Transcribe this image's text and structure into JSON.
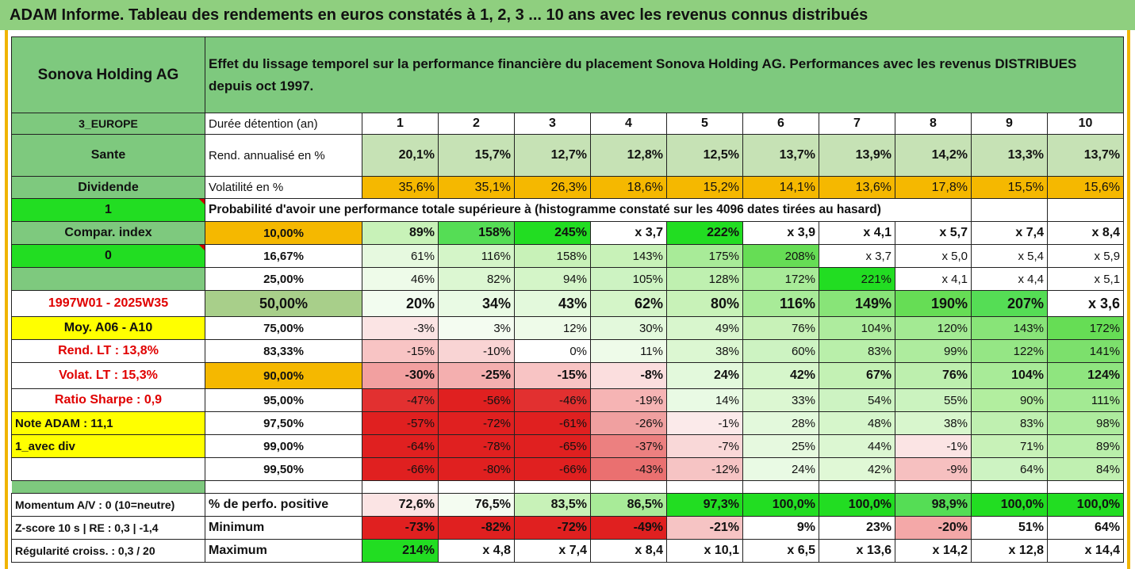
{
  "title": "ADAM Informe. Tableau des rendements en euros constatés à 1, 2, 3 ... 10 ans avec les revenus connus distribués",
  "company": "Sonova Holding AG",
  "description": "Effet du lissage temporel sur la performance financière du placement Sonova Holding AG. Performances avec les revenus DISTRIBUES depuis oct 1997.",
  "left": {
    "region": "3_EUROPE",
    "sector": "Sante",
    "dividende": "Dividende",
    "flag1": "1",
    "compar_index": "Compar. index",
    "flag0": "0",
    "period": "1997W01 - 2025W35",
    "moy": "Moy. A06 - A10",
    "rend_lt": "Rend. LT :   13,8%",
    "volat_lt": "Volat. LT :   15,3%",
    "sharpe": "Ratio Sharpe :    0,9",
    "note": "Note ADAM : 11,1",
    "avec_div": "1_avec div",
    "momentum": "Momentum A/V : 0 (10=neutre)",
    "zscore": "Z-score 10 s  |  RE : 0,3  |  -1,4",
    "regularite": "Régularité croiss. : 0,3 / 20"
  },
  "header": {
    "label": "Durée détention (an)",
    "years": [
      "1",
      "2",
      "3",
      "4",
      "5",
      "6",
      "7",
      "8",
      "9",
      "10"
    ]
  },
  "rend": {
    "label": "Rend. annualisé en %",
    "values": [
      "20,1%",
      "15,7%",
      "12,7%",
      "12,8%",
      "12,5%",
      "13,7%",
      "13,9%",
      "14,2%",
      "13,3%",
      "13,7%"
    ]
  },
  "vol": {
    "label": "Volatilité en %",
    "values": [
      "35,6%",
      "35,1%",
      "26,3%",
      "18,6%",
      "15,2%",
      "14,1%",
      "13,6%",
      "17,8%",
      "15,5%",
      "15,6%"
    ]
  },
  "proba_title": "Probabilité d'avoir une performance totale supérieure à (histogramme constaté sur les 4096 dates tirées au hasard)",
  "quantiles": [
    {
      "label": "10,00%",
      "values": [
        "89%",
        "158%",
        "245%",
        "x 3,7",
        "222%",
        "x 3,9",
        "x 4,1",
        "x 5,7",
        "x 7,4",
        "x 8,4"
      ]
    },
    {
      "label": "16,67%",
      "values": [
        "61%",
        "116%",
        "158%",
        "143%",
        "175%",
        "208%",
        "x 3,7",
        "x 5,0",
        "x 5,4",
        "x 5,9"
      ]
    },
    {
      "label": "25,00%",
      "values": [
        "46%",
        "82%",
        "94%",
        "105%",
        "128%",
        "172%",
        "221%",
        "x 4,1",
        "x 4,4",
        "x 5,1"
      ]
    },
    {
      "label": "50,00%",
      "values": [
        "20%",
        "34%",
        "43%",
        "62%",
        "80%",
        "116%",
        "149%",
        "190%",
        "207%",
        "x 3,6"
      ]
    },
    {
      "label": "75,00%",
      "values": [
        "-3%",
        "3%",
        "12%",
        "30%",
        "49%",
        "76%",
        "104%",
        "120%",
        "143%",
        "172%"
      ]
    },
    {
      "label": "83,33%",
      "values": [
        "-15%",
        "-10%",
        "0%",
        "11%",
        "38%",
        "60%",
        "83%",
        "99%",
        "122%",
        "141%"
      ]
    },
    {
      "label": "90,00%",
      "values": [
        "-30%",
        "-25%",
        "-15%",
        "-8%",
        "24%",
        "42%",
        "67%",
        "76%",
        "104%",
        "124%"
      ]
    },
    {
      "label": "95,00%",
      "values": [
        "-47%",
        "-56%",
        "-46%",
        "-19%",
        "14%",
        "33%",
        "54%",
        "55%",
        "90%",
        "111%"
      ]
    },
    {
      "label": "97,50%",
      "values": [
        "-57%",
        "-72%",
        "-61%",
        "-26%",
        "-1%",
        "28%",
        "48%",
        "38%",
        "83%",
        "98%"
      ]
    },
    {
      "label": "99,00%",
      "values": [
        "-64%",
        "-78%",
        "-65%",
        "-37%",
        "-7%",
        "25%",
        "44%",
        "-1%",
        "71%",
        "89%"
      ]
    },
    {
      "label": "99,50%",
      "values": [
        "-66%",
        "-80%",
        "-66%",
        "-43%",
        "-12%",
        "24%",
        "42%",
        "-9%",
        "64%",
        "84%"
      ]
    }
  ],
  "stats": [
    {
      "label": "% de perfo. positive",
      "values": [
        "72,6%",
        "76,5%",
        "83,5%",
        "86,5%",
        "97,3%",
        "100,0%",
        "100,0%",
        "98,9%",
        "100,0%",
        "100,0%"
      ]
    },
    {
      "label": "Minimum",
      "values": [
        "-73%",
        "-82%",
        "-72%",
        "-49%",
        "-21%",
        "9%",
        "23%",
        "-20%",
        "51%",
        "64%"
      ]
    },
    {
      "label": "Maximum",
      "values": [
        "214%",
        "x 4,8",
        "x 7,4",
        "x 8,4",
        "x 10,1",
        "x 6,5",
        "x 13,6",
        "x 14,2",
        "x 12,8",
        "x 14,4"
      ]
    }
  ],
  "colors": {
    "header_green": "#7ec97e",
    "pale_green": "#c6e2b5",
    "orange": "#f5b800",
    "lime": "#22dd22",
    "yellow": "#ffff00",
    "deep_red": "#e02020"
  }
}
